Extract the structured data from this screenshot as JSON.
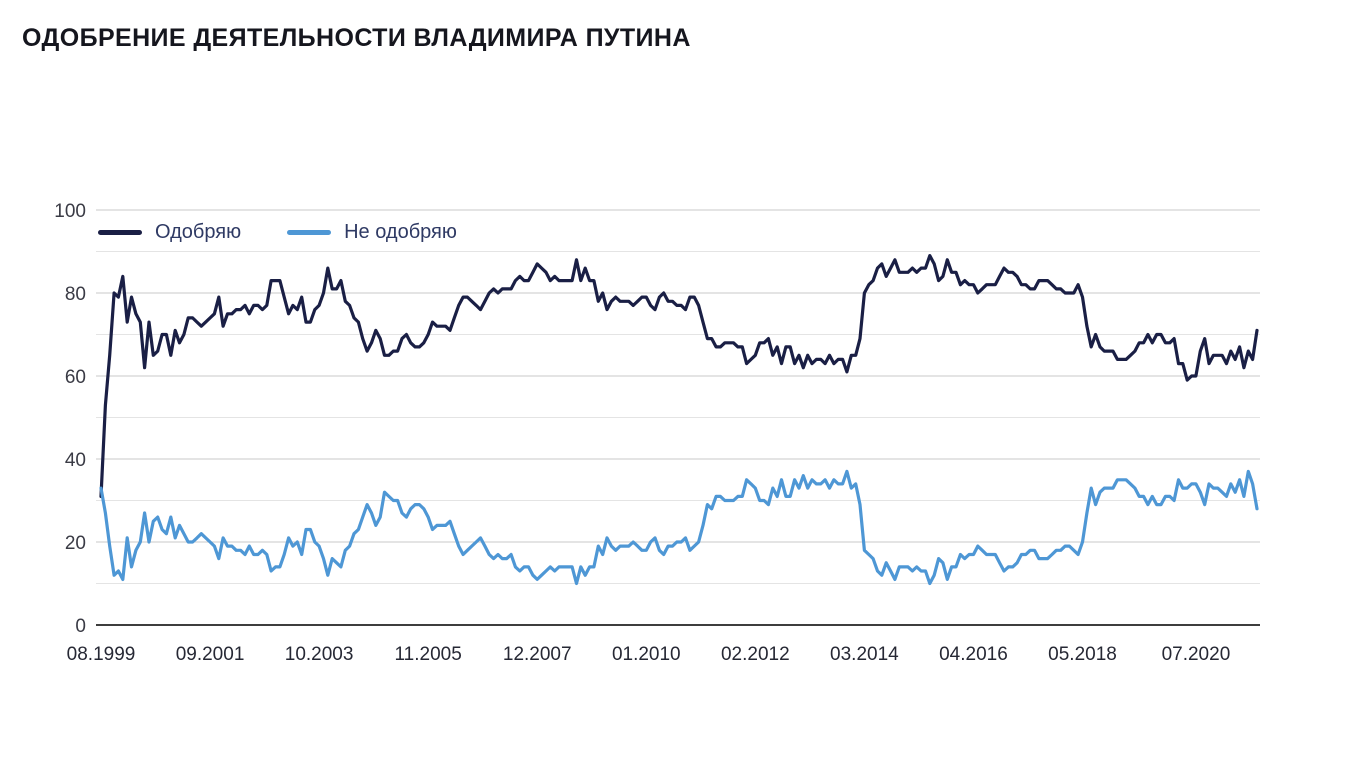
{
  "page": {
    "title": "ОДОБРЕНИЕ ДЕЯТЕЛЬНОСТИ ВЛАДИМИРА ПУТИНА"
  },
  "chart_data": {
    "type": "line",
    "title": "ОДОБРЕНИЕ ДЕЯТЕЛЬНОСТИ ВЛАДИМИРА ПУТИНА",
    "x_start": "08.1999",
    "x_end": "09.2021",
    "x_interval": "monthly",
    "x_tick_labels": [
      "08.1999",
      "09.2001",
      "10.2003",
      "11.2005",
      "12.2007",
      "01.2010",
      "02.2012",
      "03.2014",
      "04.2016",
      "05.2018",
      "07.2020"
    ],
    "x_tick_indices": [
      0,
      25,
      50,
      75,
      100,
      125,
      150,
      175,
      200,
      225,
      251
    ],
    "ylim": [
      0,
      100
    ],
    "y_ticks": [
      0,
      20,
      40,
      60,
      80,
      100
    ],
    "grid_step": 10,
    "grid": true,
    "legend_position": "top-left",
    "colors": {
      "approve_line": "#1a1f45",
      "disapprove_line": "#4e97d5",
      "grid_major": "#c9c9c9",
      "grid_minor": "#e4e4e4",
      "axis": "#3d3d3d"
    },
    "series": [
      {
        "name": "Одобряю",
        "color": "#1a1f45",
        "values": [
          31,
          53,
          65,
          80,
          79,
          84,
          73,
          79,
          75,
          73,
          62,
          73,
          65,
          66,
          70,
          70,
          65,
          71,
          68,
          70,
          74,
          74,
          73,
          72,
          73,
          74,
          75,
          79,
          72,
          75,
          75,
          76,
          76,
          77,
          75,
          77,
          77,
          76,
          77,
          83,
          83,
          83,
          79,
          75,
          77,
          76,
          79,
          73,
          73,
          76,
          77,
          80,
          86,
          81,
          81,
          83,
          78,
          77,
          74,
          73,
          69,
          66,
          68,
          71,
          69,
          65,
          65,
          66,
          66,
          69,
          70,
          68,
          67,
          67,
          68,
          70,
          73,
          72,
          72,
          72,
          71,
          74,
          77,
          79,
          79,
          78,
          77,
          76,
          78,
          80,
          81,
          80,
          81,
          81,
          81,
          83,
          84,
          83,
          83,
          85,
          87,
          86,
          85,
          83,
          84,
          83,
          83,
          83,
          83,
          88,
          83,
          86,
          83,
          83,
          78,
          80,
          76,
          78,
          79,
          78,
          78,
          78,
          77,
          78,
          79,
          79,
          77,
          76,
          79,
          80,
          78,
          78,
          77,
          77,
          76,
          79,
          79,
          77,
          73,
          69,
          69,
          67,
          67,
          68,
          68,
          68,
          67,
          67,
          63,
          64,
          65,
          68,
          68,
          69,
          65,
          67,
          63,
          67,
          67,
          63,
          65,
          62,
          65,
          63,
          64,
          64,
          63,
          65,
          63,
          64,
          64,
          61,
          65,
          65,
          69,
          80,
          82,
          83,
          86,
          87,
          84,
          86,
          88,
          85,
          85,
          85,
          86,
          85,
          86,
          86,
          89,
          87,
          83,
          84,
          88,
          85,
          85,
          82,
          83,
          82,
          82,
          80,
          81,
          82,
          82,
          82,
          84,
          86,
          85,
          85,
          84,
          82,
          82,
          81,
          81,
          83,
          83,
          83,
          82,
          81,
          81,
          80,
          80,
          80,
          82,
          79,
          72,
          67,
          70,
          67,
          66,
          66,
          66,
          64,
          64,
          64,
          65,
          66,
          68,
          68,
          70,
          68,
          70,
          70,
          68,
          68,
          69,
          63,
          63,
          59,
          60,
          60,
          66,
          69,
          63,
          65,
          65,
          65,
          63,
          66,
          64,
          67,
          62,
          66,
          64,
          71
        ]
      },
      {
        "name": "Не одобряю",
        "color": "#4e97d5",
        "values": [
          33,
          27,
          19,
          12,
          13,
          11,
          21,
          14,
          18,
          20,
          27,
          20,
          25,
          26,
          23,
          22,
          26,
          21,
          24,
          22,
          20,
          20,
          21,
          22,
          21,
          20,
          19,
          16,
          21,
          19,
          19,
          18,
          18,
          17,
          19,
          17,
          17,
          18,
          17,
          13,
          14,
          14,
          17,
          21,
          19,
          20,
          17,
          23,
          23,
          20,
          19,
          16,
          12,
          16,
          15,
          14,
          18,
          19,
          22,
          23,
          26,
          29,
          27,
          24,
          26,
          32,
          31,
          30,
          30,
          27,
          26,
          28,
          29,
          29,
          28,
          26,
          23,
          24,
          24,
          24,
          25,
          22,
          19,
          17,
          18,
          19,
          20,
          21,
          19,
          17,
          16,
          17,
          16,
          16,
          17,
          14,
          13,
          14,
          14,
          12,
          11,
          12,
          13,
          14,
          13,
          14,
          14,
          14,
          14,
          10,
          14,
          12,
          14,
          14,
          19,
          17,
          21,
          19,
          18,
          19,
          19,
          19,
          20,
          19,
          18,
          18,
          20,
          21,
          18,
          17,
          19,
          19,
          20,
          20,
          21,
          18,
          19,
          20,
          24,
          29,
          28,
          31,
          31,
          30,
          30,
          30,
          31,
          31,
          35,
          34,
          33,
          30,
          30,
          29,
          33,
          31,
          35,
          31,
          31,
          35,
          33,
          36,
          33,
          35,
          34,
          34,
          35,
          33,
          35,
          34,
          34,
          37,
          33,
          34,
          29,
          18,
          17,
          16,
          13,
          12,
          15,
          13,
          11,
          14,
          14,
          14,
          13,
          14,
          13,
          13,
          10,
          12,
          16,
          15,
          11,
          14,
          14,
          17,
          16,
          17,
          17,
          19,
          18,
          17,
          17,
          17,
          15,
          13,
          14,
          14,
          15,
          17,
          17,
          18,
          18,
          16,
          16,
          16,
          17,
          18,
          18,
          19,
          19,
          18,
          17,
          20,
          27,
          33,
          29,
          32,
          33,
          33,
          33,
          35,
          35,
          35,
          34,
          33,
          31,
          31,
          29,
          31,
          29,
          29,
          31,
          31,
          30,
          35,
          33,
          33,
          34,
          34,
          32,
          29,
          34,
          33,
          33,
          32,
          31,
          34,
          32,
          35,
          31,
          37,
          34,
          28
        ]
      }
    ]
  }
}
